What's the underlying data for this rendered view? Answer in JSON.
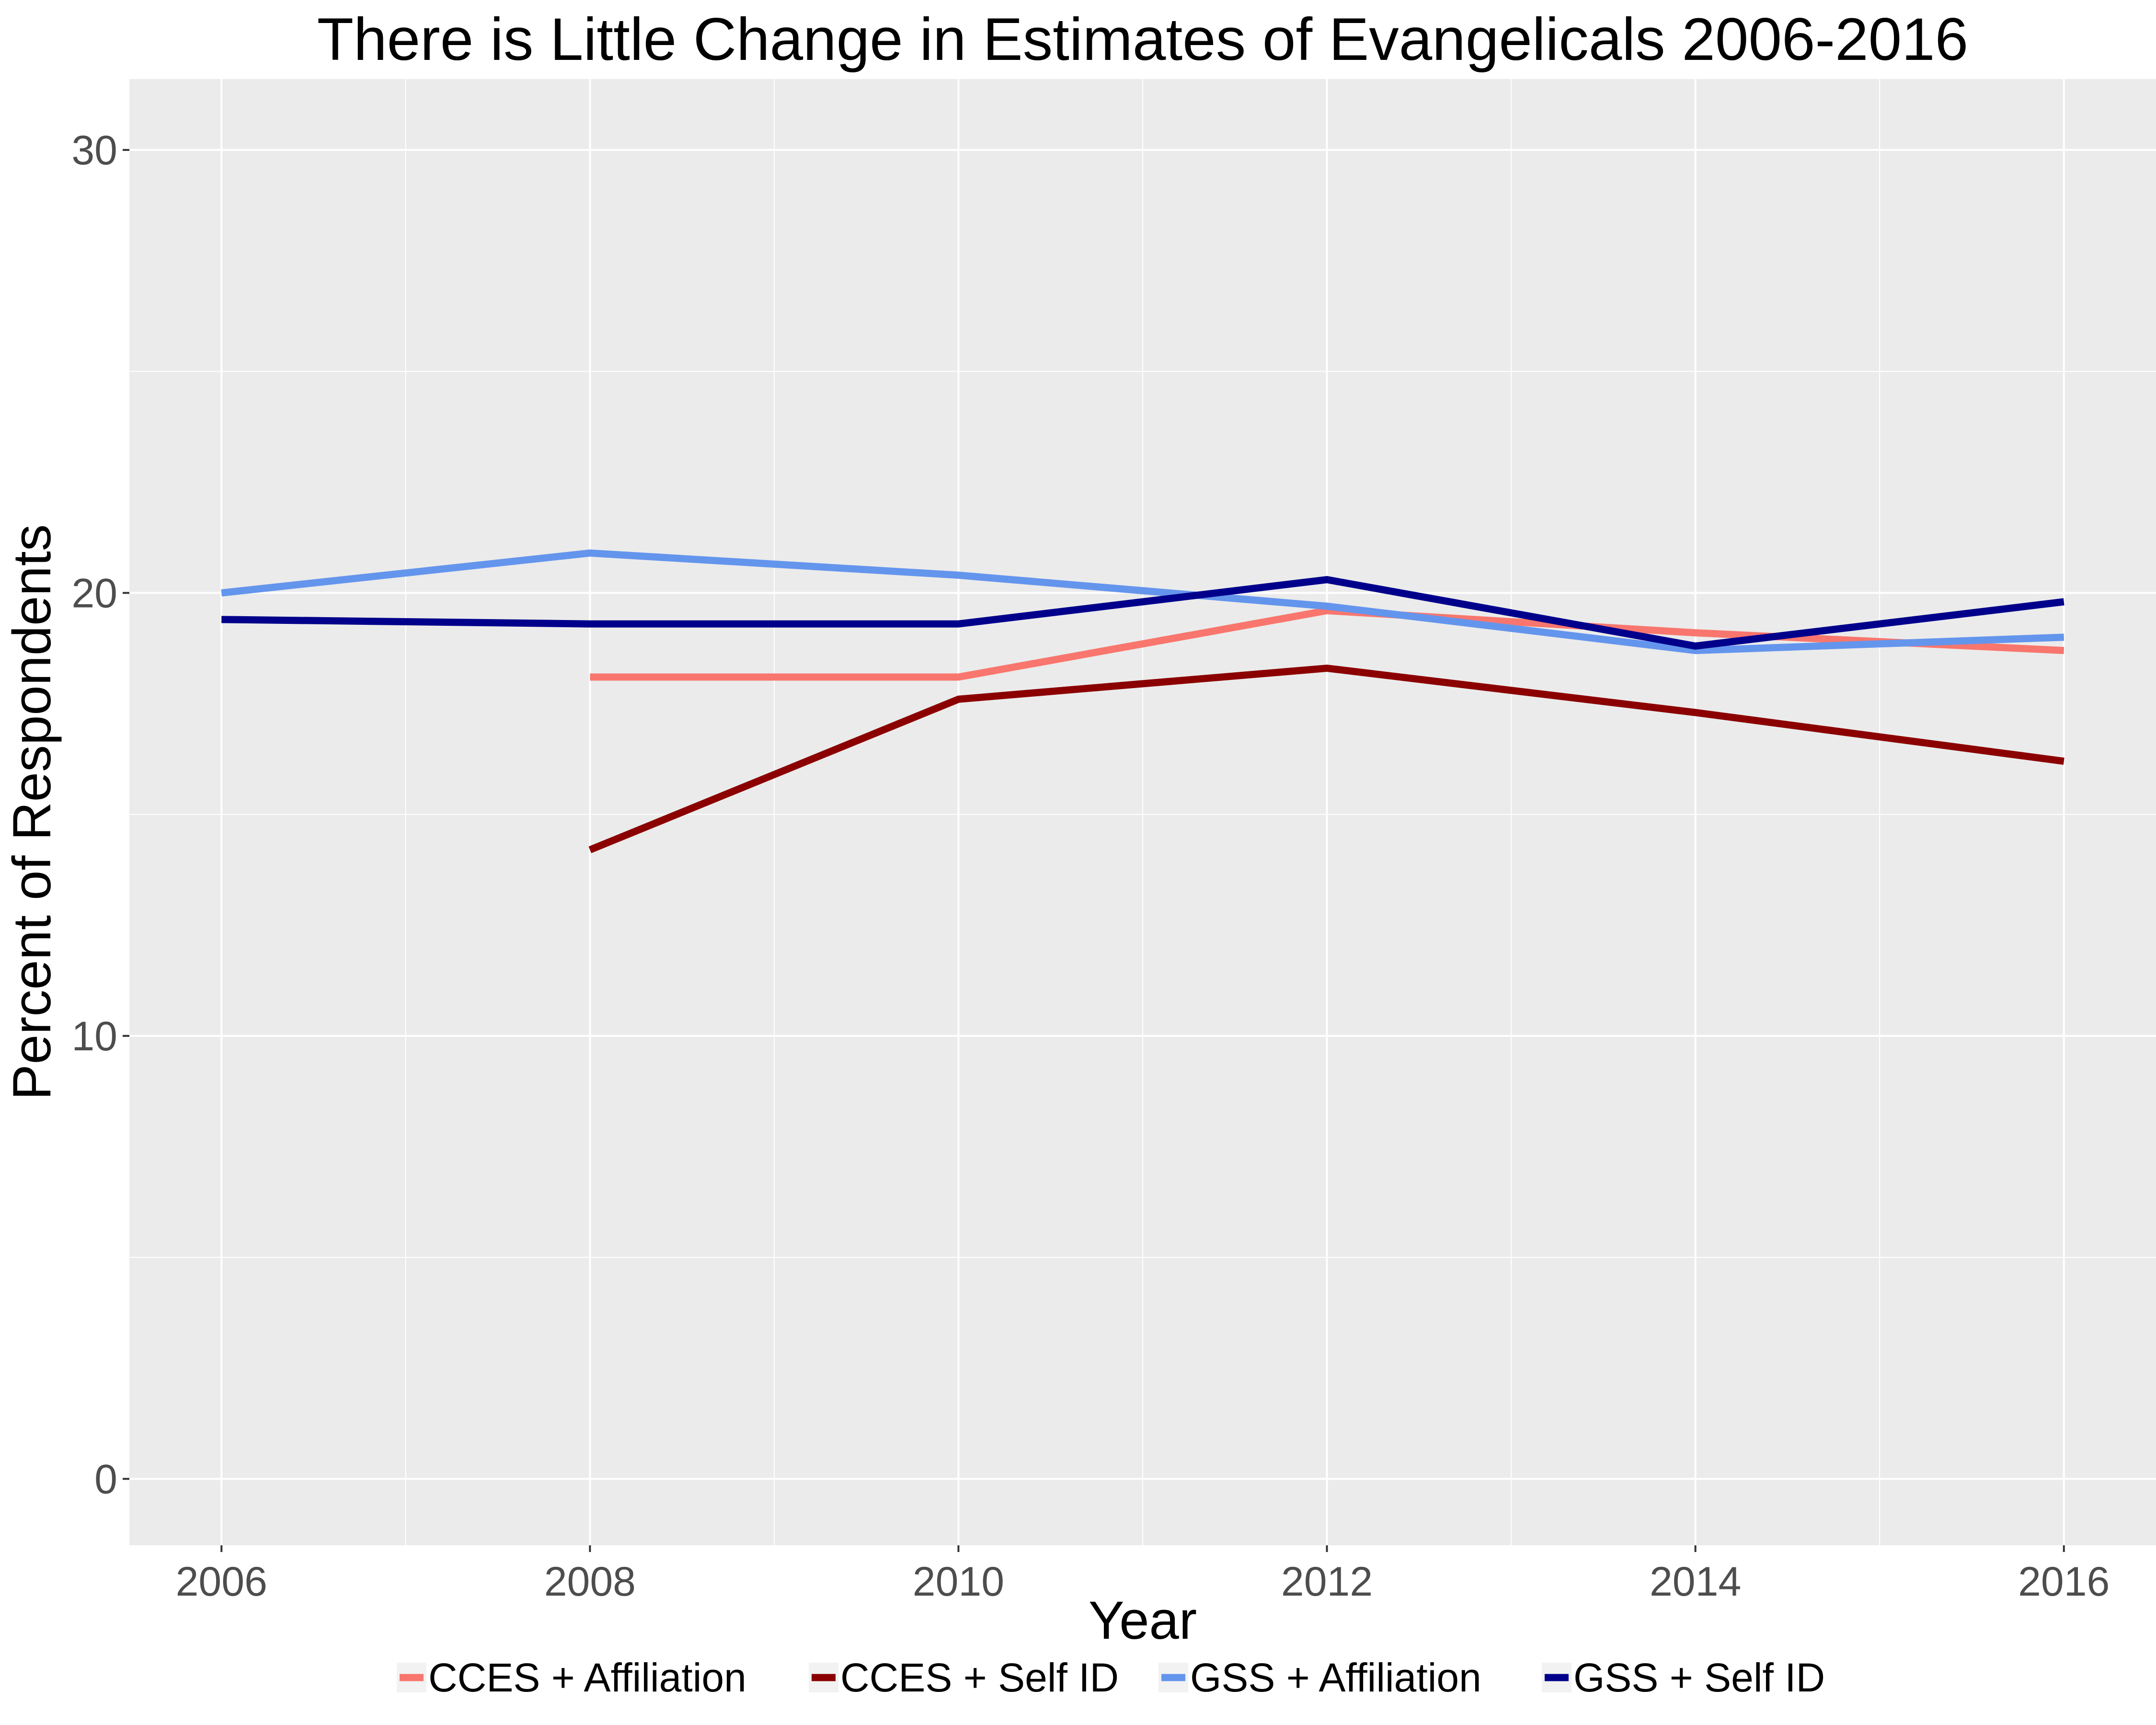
{
  "chart_data": {
    "type": "line",
    "title": "There is Little Change in Estimates of Evangelicals 2006-2016",
    "xlabel": "Year",
    "ylabel": "Percent of Respondents",
    "xlim": [
      2005.5,
      2016.5
    ],
    "ylim": [
      -1.5,
      31.6
    ],
    "x_ticks": [
      "2006",
      "2008",
      "2010",
      "2012",
      "2014",
      "2016"
    ],
    "y_ticks": [
      "0",
      "10",
      "20",
      "30"
    ],
    "grid": true,
    "legend_position": "bottom",
    "series": [
      {
        "name": "CCES + Affiliation",
        "color": "#f8766d",
        "x": [
          2008,
          2010,
          2012,
          2014,
          2016
        ],
        "y": [
          18.1,
          18.1,
          19.6,
          19.1,
          18.7
        ]
      },
      {
        "name": "CCES + Self ID",
        "color": "#8b0000",
        "x": [
          2008,
          2010,
          2012,
          2014,
          2016
        ],
        "y": [
          14.2,
          17.6,
          18.3,
          17.3,
          16.2
        ]
      },
      {
        "name": "GSS + Affiliation",
        "color": "#6495ed",
        "x": [
          2006,
          2008,
          2010,
          2012,
          2014,
          2016
        ],
        "y": [
          20.0,
          20.9,
          20.4,
          19.7,
          18.7,
          19.0
        ]
      },
      {
        "name": "GSS + Self ID",
        "color": "#00008b",
        "x": [
          2006,
          2008,
          2010,
          2012,
          2014,
          2016
        ],
        "y": [
          19.4,
          19.3,
          19.3,
          20.3,
          18.8,
          19.8
        ]
      }
    ]
  }
}
